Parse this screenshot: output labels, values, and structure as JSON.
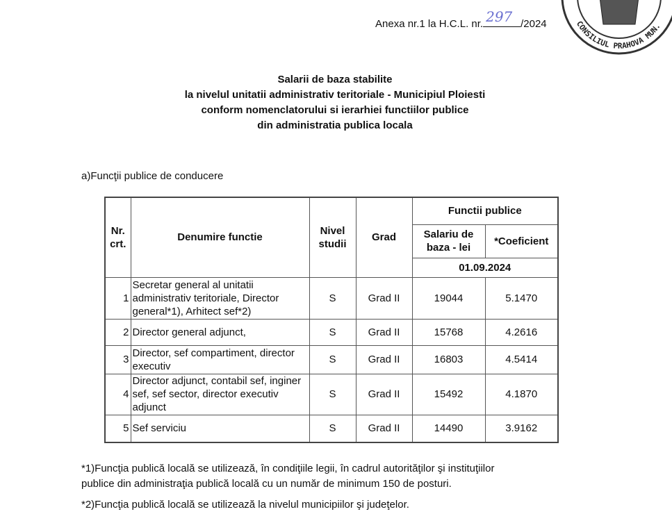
{
  "header": {
    "annex_prefix": "Anexa nr.1 la H.C.L. nr.",
    "hcl_number": "297",
    "annex_suffix": "/2024",
    "stamp_text": "CONSILIUL MUNICIPIUL PRAHOVA"
  },
  "title": [
    "Salarii de baza stabilite",
    "la nivelul unitatii administrativ teritoriale - Municipiul Ploiesti",
    "conform nomenclatorului si ierarhiei functiilor publice",
    "din administratia publica locala"
  ],
  "section": "a)Funcţii publice de conducere",
  "table": {
    "headers": {
      "nr": "Nr. crt.",
      "name": "Denumire functie",
      "studies": "Nivel studii",
      "grade": "Grad",
      "group": "Functii publice",
      "salary": "Salariu de baza - lei",
      "coef": "*Coeficient",
      "date": "01.09.2024"
    },
    "rows": [
      {
        "nr": "1",
        "name": "Secretar general al unitatii administrativ teritoriale, Director general*1), Arhitect sef*2)",
        "studies": "S",
        "grade": "Grad II",
        "salary": "19044",
        "coef": "5.1470"
      },
      {
        "nr": "2",
        "name": "Director general adjunct,",
        "studies": "S",
        "grade": "Grad II",
        "salary": "15768",
        "coef": "4.2616"
      },
      {
        "nr": "3",
        "name": "Director, sef compartiment, director executiv",
        "studies": "S",
        "grade": "Grad II",
        "salary": "16803",
        "coef": "4.5414"
      },
      {
        "nr": "4",
        "name": "Director adjunct, contabil sef, inginer sef, sef sector, director executiv adjunct",
        "studies": "S",
        "grade": "Grad II",
        "salary": "15492",
        "coef": "4.1870"
      },
      {
        "nr": "5",
        "name": "Sef serviciu",
        "studies": "S",
        "grade": "Grad II",
        "salary": "14490",
        "coef": "3.9162"
      }
    ]
  },
  "footnotes": [
    "*1)Funcţia publică locală se utilizează, în condiţiile legii, în cadrul autorităţilor şi instituţiilor publice din administraţia publică locală cu un număr de minimum 150 de posturi.",
    "*2)Funcţia publică locală se utilizează la nivelul municipiilor şi judeţelor."
  ]
}
